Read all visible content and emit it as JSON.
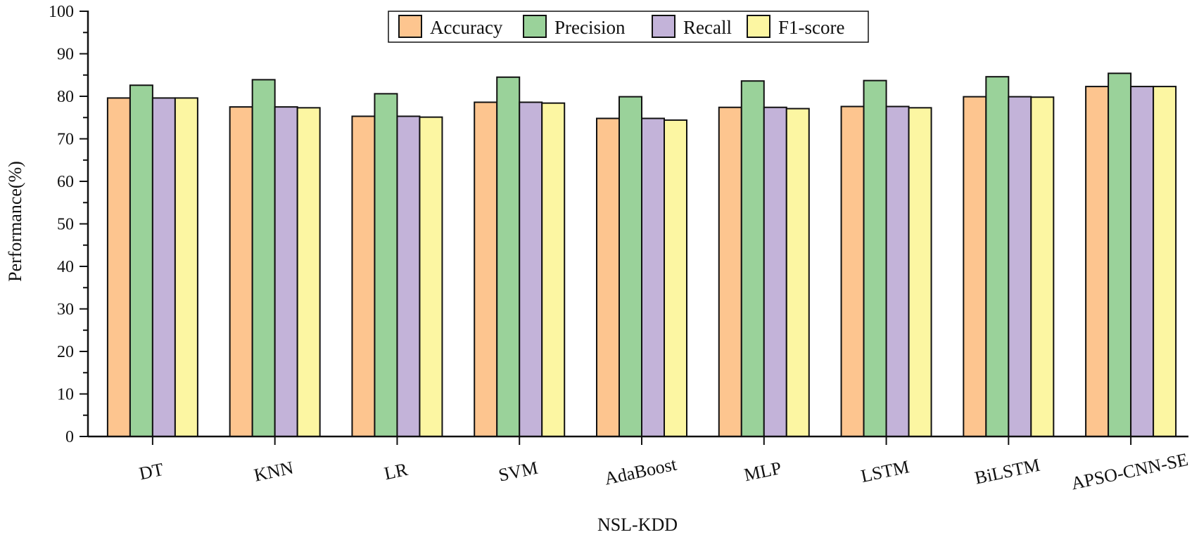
{
  "chart_data": {
    "type": "bar",
    "title": "",
    "xlabel": "NSL-KDD",
    "ylabel": "Performance(%)",
    "ylim": [
      0,
      100
    ],
    "yticks": [
      0,
      10,
      20,
      30,
      40,
      50,
      60,
      70,
      80,
      90,
      100
    ],
    "grid": false,
    "legend_position": "top-center",
    "categories": [
      "DT",
      "KNN",
      "LR",
      "SVM",
      "AdaBoost",
      "MLP",
      "LSTM",
      "BiLSTM",
      "APSO-CNN-SE"
    ],
    "series": [
      {
        "name": "Accuracy",
        "color": "#fdc58f",
        "values": [
          79.6,
          77.5,
          75.3,
          78.6,
          74.8,
          77.4,
          77.6,
          79.9,
          82.3
        ]
      },
      {
        "name": "Precision",
        "color": "#9ad29a",
        "values": [
          82.6,
          83.9,
          80.6,
          84.5,
          79.9,
          83.6,
          83.7,
          84.6,
          85.4
        ]
      },
      {
        "name": "Recall",
        "color": "#c3b3d9",
        "values": [
          79.6,
          77.5,
          75.3,
          78.6,
          74.8,
          77.4,
          77.6,
          79.9,
          82.3
        ]
      },
      {
        "name": "F1-score",
        "color": "#fcf6a2",
        "values": [
          79.6,
          77.3,
          75.1,
          78.4,
          74.4,
          77.1,
          77.3,
          79.8,
          82.3
        ]
      }
    ]
  }
}
